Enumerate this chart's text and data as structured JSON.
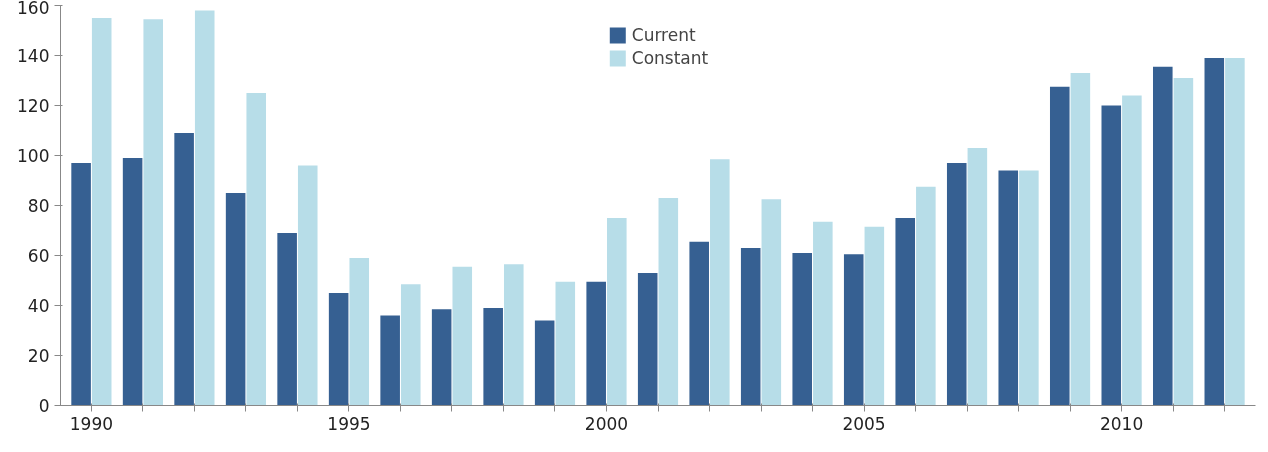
{
  "chart_data": {
    "type": "bar",
    "categories": [
      "1990",
      null,
      null,
      null,
      null,
      "1995",
      null,
      null,
      null,
      null,
      "2000",
      null,
      null,
      null,
      null,
      "2005",
      null,
      null,
      null,
      null,
      "2010",
      null,
      null
    ],
    "series": [
      {
        "name": "Current",
        "color": "#366092",
        "values": [
          97,
          99,
          109,
          85,
          69,
          45,
          36,
          38.5,
          39,
          34,
          49.5,
          53,
          65.5,
          63,
          61,
          60.5,
          75,
          97,
          94,
          127.5,
          120,
          135.5,
          139
        ]
      },
      {
        "name": "Constant",
        "color": "#b7dde8",
        "values": [
          155,
          154.5,
          158,
          125,
          96,
          59,
          48.5,
          55.5,
          56.5,
          49.5,
          75,
          83,
          98.5,
          82.5,
          73.5,
          71.5,
          87.5,
          103,
          94,
          133,
          124,
          131,
          139
        ]
      }
    ],
    "ylim": [
      0,
      160
    ],
    "yticks": [
      0,
      20,
      40,
      60,
      80,
      100,
      120,
      140,
      160
    ],
    "grid": false,
    "legend": "top"
  }
}
